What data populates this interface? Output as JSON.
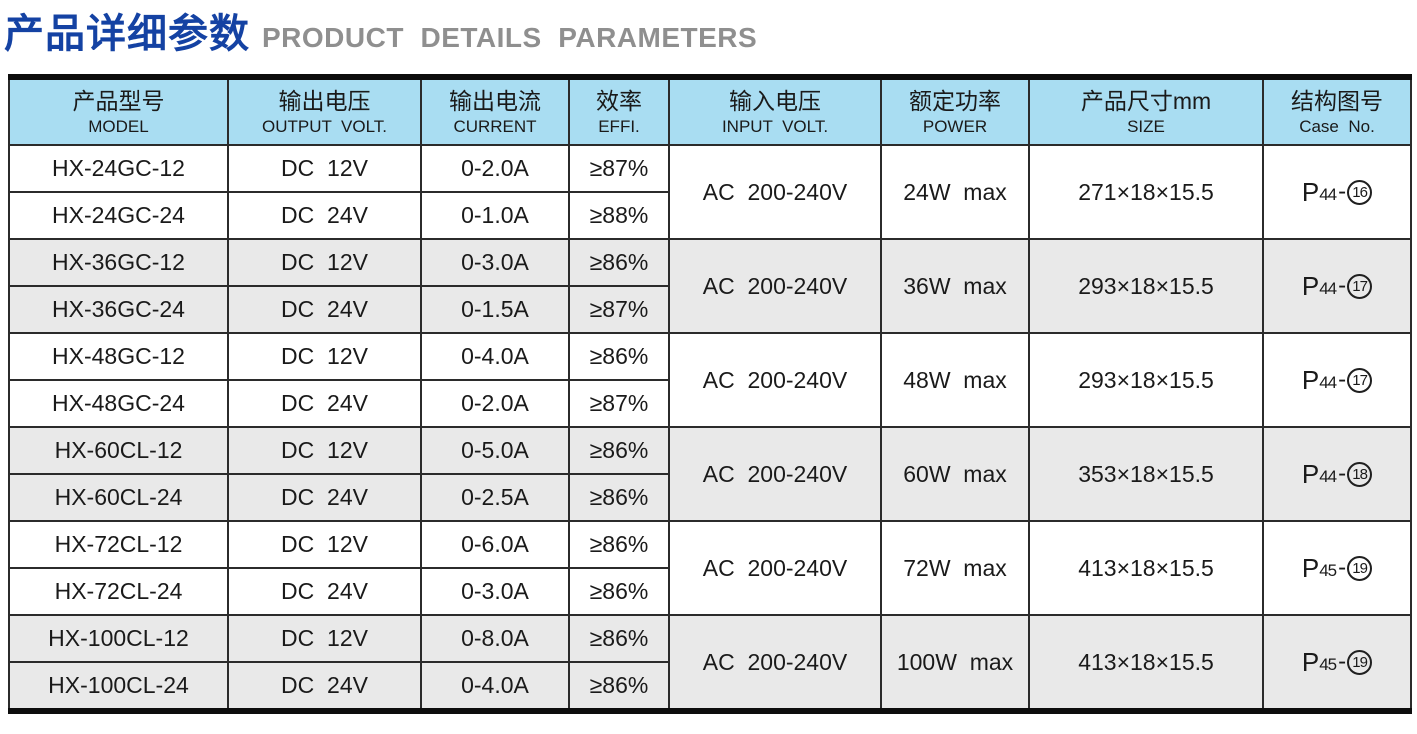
{
  "page": {
    "title_cn": "产品详细参数",
    "title_en": "PRODUCT  DETAILS  PARAMETERS"
  },
  "colors": {
    "title_blue": "#1442a3",
    "subtitle_gray": "#8f8f8f",
    "header_bg": "#a9ddf2",
    "alt_row_bg": "#e9e9e9",
    "border": "#1c1c1c"
  },
  "table": {
    "headers": [
      {
        "cn": "产品型号",
        "en": "MODEL"
      },
      {
        "cn": "输出电压",
        "en": "OUTPUT  VOLT."
      },
      {
        "cn": "输出电流",
        "en": "CURRENT"
      },
      {
        "cn": "效率",
        "en": "EFFI."
      },
      {
        "cn": "输入电压",
        "en": "INPUT  VOLT."
      },
      {
        "cn": "额定功率",
        "en": "POWER"
      },
      {
        "cn": "产品尺寸mm",
        "en": "SIZE"
      },
      {
        "cn": "结构图号",
        "en": "Case  No."
      }
    ],
    "groups": [
      {
        "rows": [
          {
            "model": "HX-24GC-12",
            "output_volt": "DC  12V",
            "current": "0-2.0A",
            "efficiency": "≥87%"
          },
          {
            "model": "HX-24GC-24",
            "output_volt": "DC  24V",
            "current": "0-1.0A",
            "efficiency": "≥88%"
          }
        ],
        "input_volt": "AC  200-240V",
        "power": "24W  max",
        "size": "271×18×15.5",
        "case_no": {
          "prefix": "P",
          "page": "44",
          "sep": "-",
          "fig": "16"
        }
      },
      {
        "rows": [
          {
            "model": "HX-36GC-12",
            "output_volt": "DC  12V",
            "current": "0-3.0A",
            "efficiency": "≥86%"
          },
          {
            "model": "HX-36GC-24",
            "output_volt": "DC  24V",
            "current": "0-1.5A",
            "efficiency": "≥87%"
          }
        ],
        "input_volt": "AC  200-240V",
        "power": "36W  max",
        "size": "293×18×15.5",
        "case_no": {
          "prefix": "P",
          "page": "44",
          "sep": "-",
          "fig": "17"
        }
      },
      {
        "rows": [
          {
            "model": "HX-48GC-12",
            "output_volt": "DC  12V",
            "current": "0-4.0A",
            "efficiency": "≥86%"
          },
          {
            "model": "HX-48GC-24",
            "output_volt": "DC  24V",
            "current": "0-2.0A",
            "efficiency": "≥87%"
          }
        ],
        "input_volt": "AC  200-240V",
        "power": "48W  max",
        "size": "293×18×15.5",
        "case_no": {
          "prefix": "P",
          "page": "44",
          "sep": "-",
          "fig": "17"
        }
      },
      {
        "rows": [
          {
            "model": "HX-60CL-12",
            "output_volt": "DC  12V",
            "current": "0-5.0A",
            "efficiency": "≥86%"
          },
          {
            "model": "HX-60CL-24",
            "output_volt": "DC  24V",
            "current": "0-2.5A",
            "efficiency": "≥86%"
          }
        ],
        "input_volt": "AC  200-240V",
        "power": "60W  max",
        "size": "353×18×15.5",
        "case_no": {
          "prefix": "P",
          "page": "44",
          "sep": "-",
          "fig": "18"
        }
      },
      {
        "rows": [
          {
            "model": "HX-72CL-12",
            "output_volt": "DC  12V",
            "current": "0-6.0A",
            "efficiency": "≥86%"
          },
          {
            "model": "HX-72CL-24",
            "output_volt": "DC  24V",
            "current": "0-3.0A",
            "efficiency": "≥86%"
          }
        ],
        "input_volt": "AC  200-240V",
        "power": "72W  max",
        "size": "413×18×15.5",
        "case_no": {
          "prefix": "P",
          "page": "45",
          "sep": "-",
          "fig": "19"
        }
      },
      {
        "rows": [
          {
            "model": "HX-100CL-12",
            "output_volt": "DC  12V",
            "current": "0-8.0A",
            "efficiency": "≥86%"
          },
          {
            "model": "HX-100CL-24",
            "output_volt": "DC  24V",
            "current": "0-4.0A",
            "efficiency": "≥86%"
          }
        ],
        "input_volt": "AC  200-240V",
        "power": "100W  max",
        "size": "413×18×15.5",
        "case_no": {
          "prefix": "P",
          "page": "45",
          "sep": "-",
          "fig": "19"
        }
      }
    ]
  }
}
